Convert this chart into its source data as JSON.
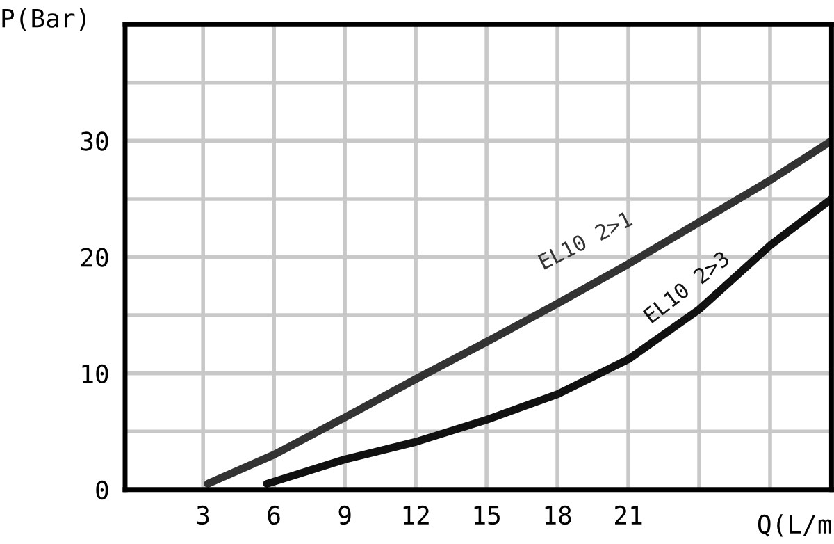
{
  "chart_data": {
    "type": "line",
    "xlabel": "Q(L/m",
    "ylabel": "P(Bar)",
    "xlim": [
      -0.3,
      29.6
    ],
    "ylim": [
      0,
      40
    ],
    "xticks": [
      3,
      6,
      9,
      12,
      15,
      18,
      21,
      {
        "value": 24,
        "label": null
      },
      {
        "value": 27,
        "label": null
      }
    ],
    "yticks": [
      0,
      {
        "value": 5,
        "label": null
      },
      10,
      {
        "value": 15,
        "label": null
      },
      20,
      {
        "value": 25,
        "label": null
      },
      30,
      {
        "value": 35,
        "label": null
      }
    ],
    "grid": true,
    "line_style": "solid",
    "marker": "none",
    "series": [
      {
        "name": "EL10 2>1",
        "color": "#333333",
        "x": [
          3.2,
          6,
          9,
          12,
          15,
          18,
          21,
          24,
          27,
          29.6
        ],
        "values": [
          0.5,
          3,
          6.2,
          9.5,
          12.7,
          16,
          19.4,
          23,
          26.6,
          30
        ]
      },
      {
        "name": "EL10 2>3",
        "color": "#111111",
        "x": [
          5.7,
          9,
          12,
          15,
          18,
          21,
          24,
          27,
          29.6
        ],
        "values": [
          0.5,
          2.6,
          4.1,
          6,
          8.2,
          11.2,
          15.5,
          21,
          25
        ]
      }
    ]
  }
}
